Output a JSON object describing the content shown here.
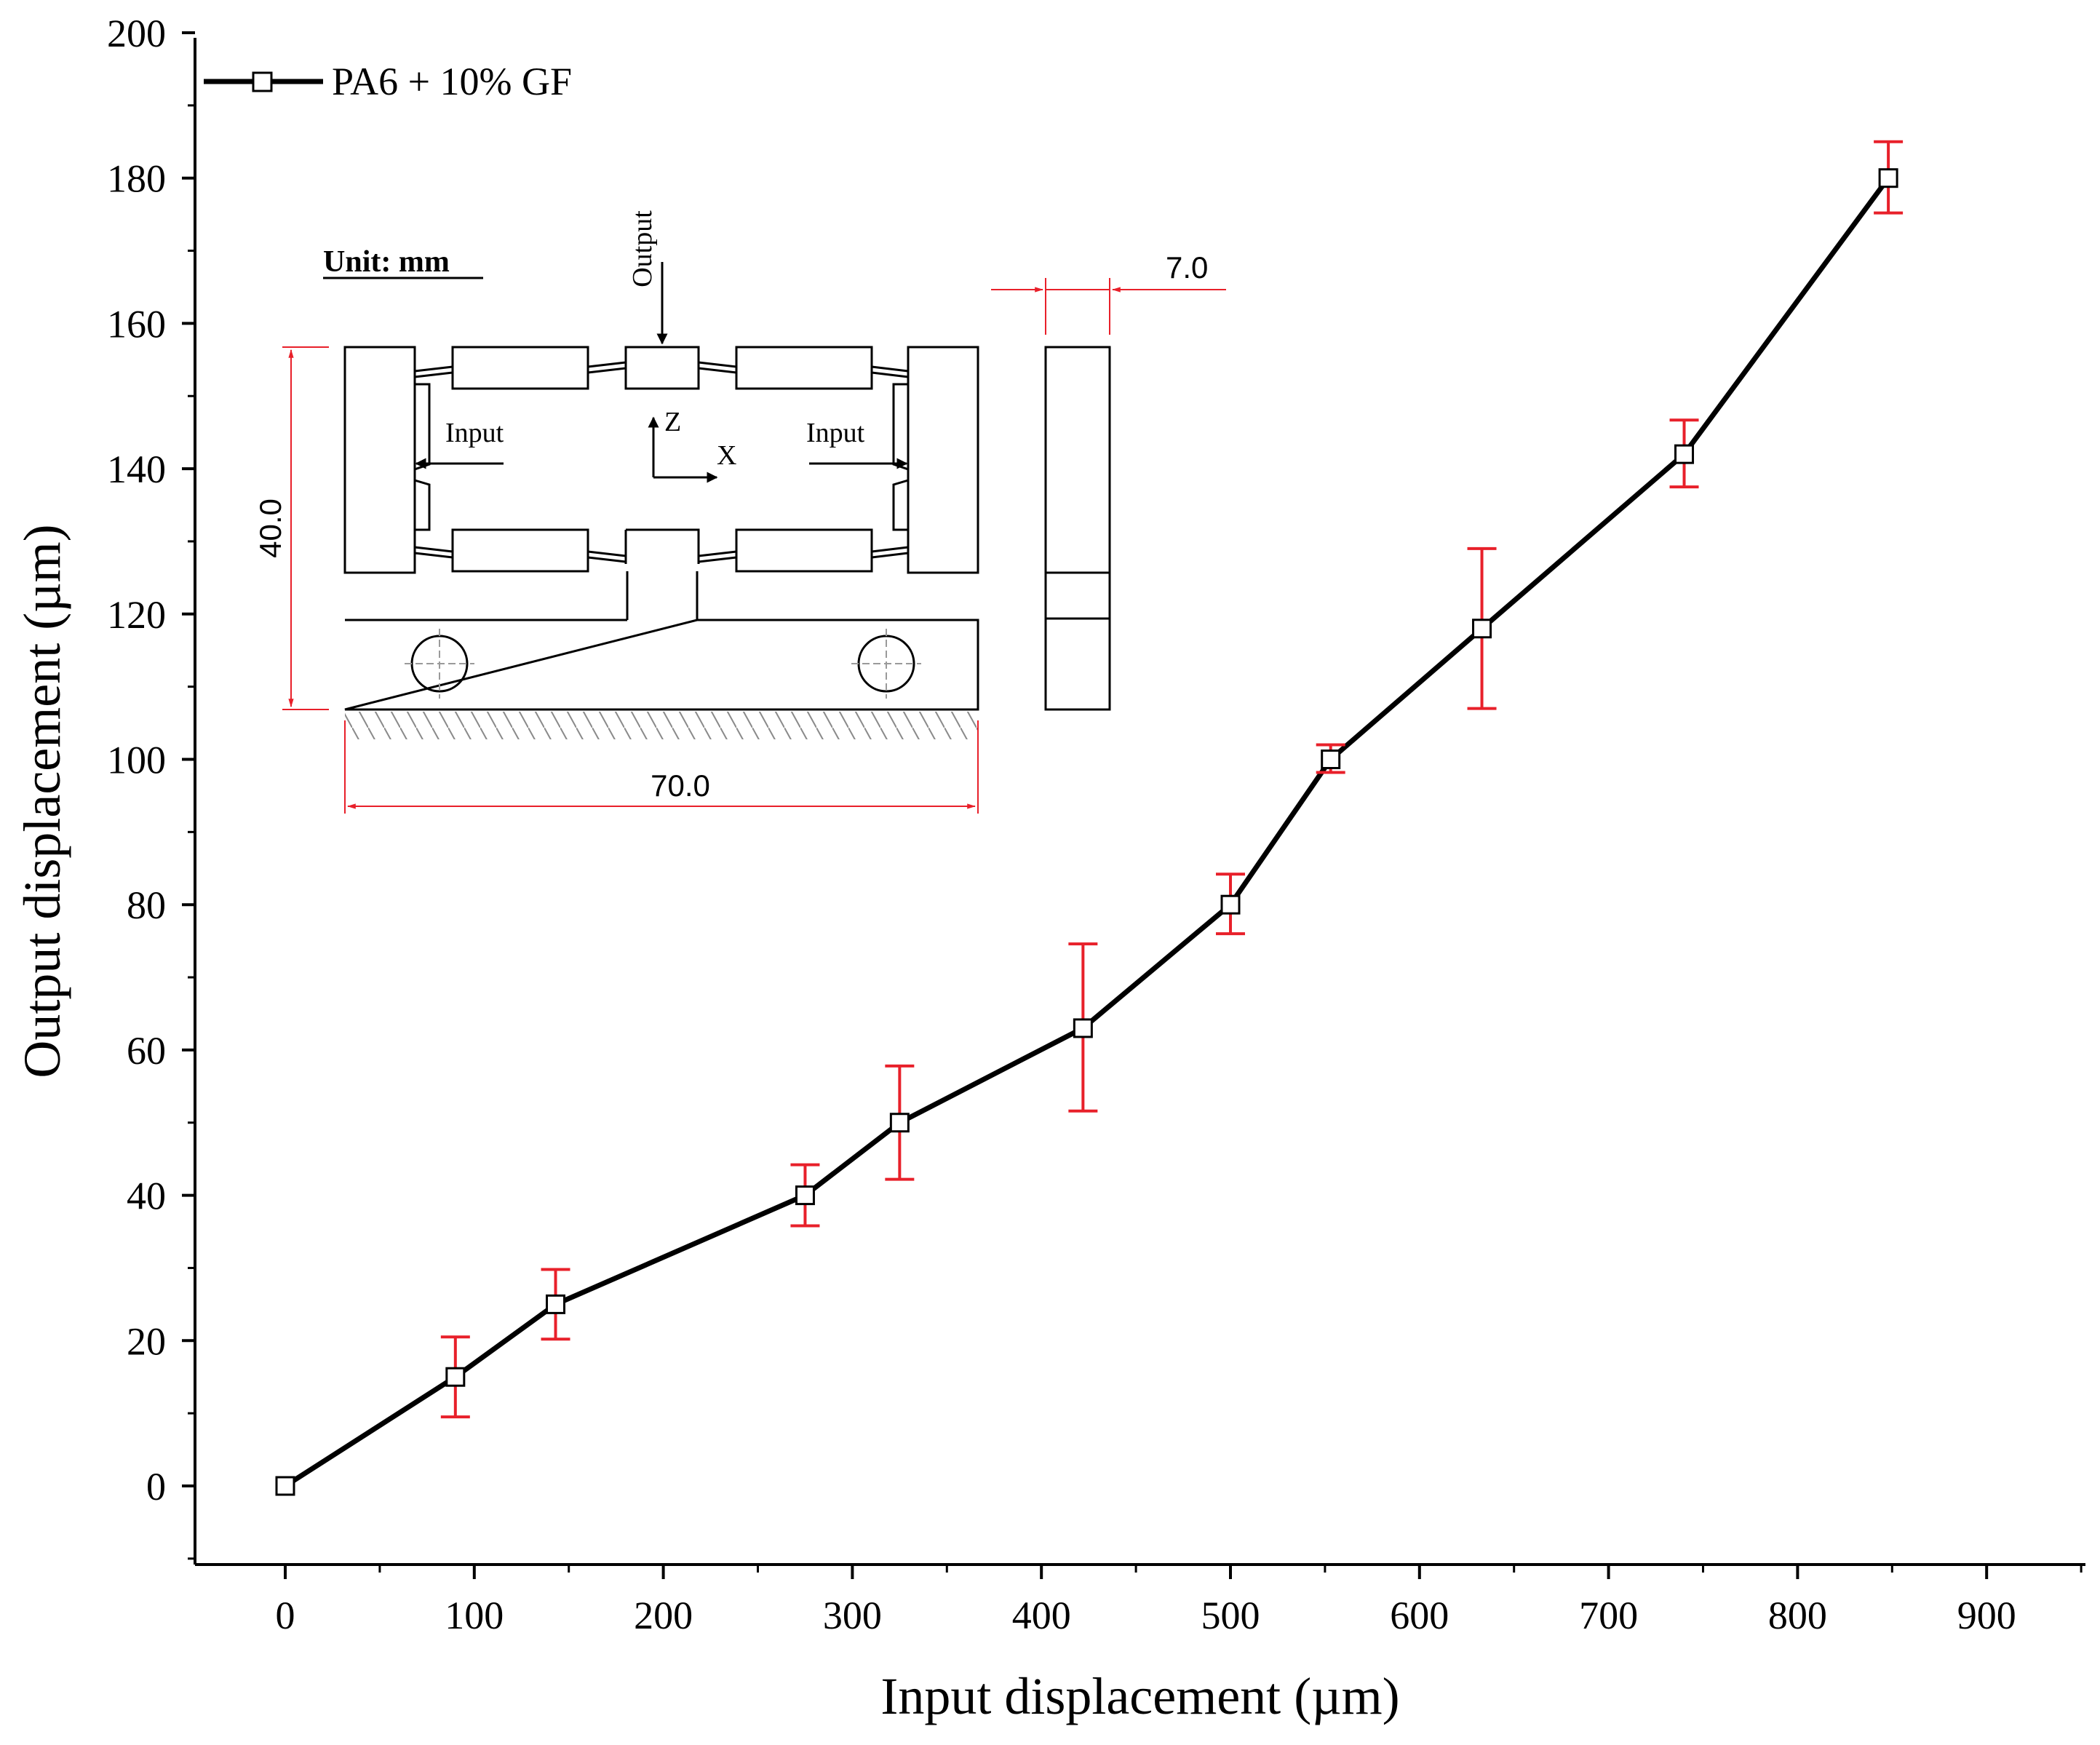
{
  "chart_data": {
    "type": "line",
    "xlabel": "Input displacement (µm)",
    "ylabel": "Output displacement (µm)",
    "xlim": [
      -50,
      950
    ],
    "ylim": [
      -10,
      200
    ],
    "xticks": [
      0,
      100,
      200,
      300,
      400,
      500,
      600,
      700,
      800,
      900
    ],
    "yticks": [
      0,
      20,
      40,
      60,
      80,
      100,
      120,
      140,
      160,
      180,
      200
    ],
    "grid": false,
    "legend_position": "top-left",
    "series": [
      {
        "name": "PA6 + 10% GF",
        "color": "#000000",
        "marker": "square",
        "error_bar_color": "#e8202a",
        "x": [
          0,
          90,
          143,
          275,
          325,
          422,
          500,
          553,
          633,
          740,
          848
        ],
        "y": [
          0,
          15,
          25,
          40,
          50,
          63,
          80,
          100,
          118,
          142,
          180
        ],
        "err_low": [
          0,
          5.5,
          4.8,
          4.2,
          7.8,
          11.4,
          4.0,
          1.8,
          11.0,
          4.5,
          4.8
        ],
        "err_high": [
          0,
          5.5,
          4.8,
          4.2,
          7.8,
          11.6,
          4.2,
          2.0,
          11.0,
          4.7,
          5.0
        ]
      }
    ]
  },
  "inset": {
    "unit_label": "Unit: mm",
    "output_label": "Output",
    "input_left_label": "Input",
    "input_right_label": "Input",
    "axis_z_label": "Z",
    "axis_x_label": "X",
    "dim_height": "40.0",
    "dim_width": "70.0",
    "dim_thickness": "7.0",
    "dimension_color": "#e8202a"
  }
}
